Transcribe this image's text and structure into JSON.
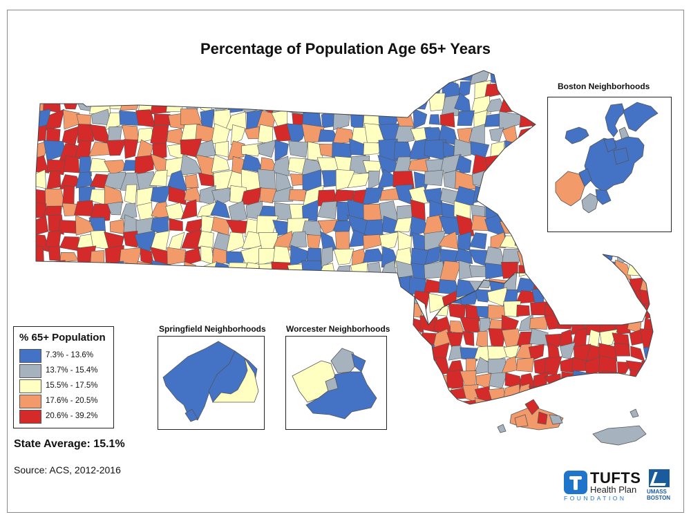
{
  "title": "Percentage of Population Age 65+ Years",
  "colors": {
    "bin1": "#4472c4",
    "bin2": "#a6b3bf",
    "bin3": "#ffffc2",
    "bin4": "#f39a6b",
    "bin5": "#d42a2a",
    "stroke": "#555555"
  },
  "legend": {
    "title": "% 65+ Population",
    "items": [
      {
        "label": "7.3% - 13.6%",
        "color": "#4472c4"
      },
      {
        "label": "13.7% - 15.4%",
        "color": "#a6b3bf"
      },
      {
        "label": "15.5% - 17.5%",
        "color": "#ffffc2"
      },
      {
        "label": "17.6% - 20.5%",
        "color": "#f39a6b"
      },
      {
        "label": "20.6% - 39.2%",
        "color": "#d42a2a"
      }
    ]
  },
  "insets": {
    "boston": "Boston Neighborhoods",
    "springfield": "Springfield Neighborhoods",
    "worcester": "Worcester Neighborhoods"
  },
  "state_average": "State Average: 15.1%",
  "source": "Source: ACS, 2012-2016",
  "logos": {
    "tufts_name": "TUFTS",
    "tufts_sub": "Health Plan",
    "tufts_foundation": "FOUNDATION",
    "umass_line1": "UMASS",
    "umass_line2": "BOSTON"
  }
}
